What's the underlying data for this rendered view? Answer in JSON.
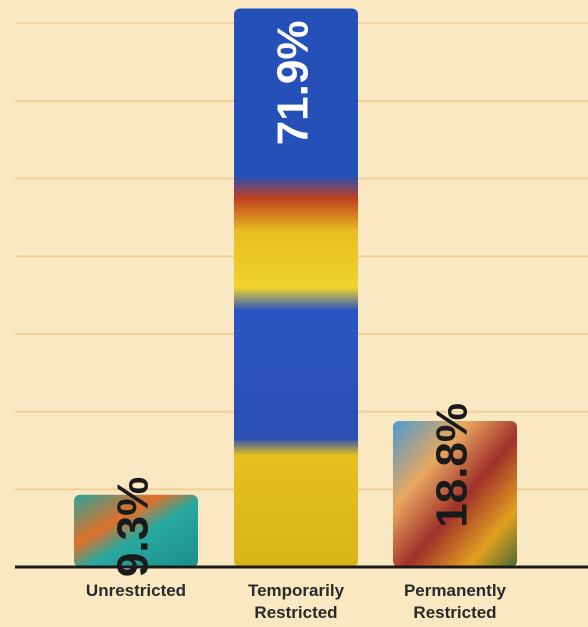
{
  "chart_data": {
    "type": "bar",
    "categories": [
      "Unrestricted",
      "Temporarily Restricted",
      "Permanently Restricted"
    ],
    "values": [
      9.3,
      71.9,
      18.8
    ],
    "value_labels": [
      "9.3%",
      "71.9%",
      "18.8%"
    ],
    "ylim": [
      0,
      73
    ],
    "yticks": [
      10,
      20,
      30,
      40,
      50,
      60,
      70
    ],
    "grid": true,
    "ytick_labels": false
  }
}
